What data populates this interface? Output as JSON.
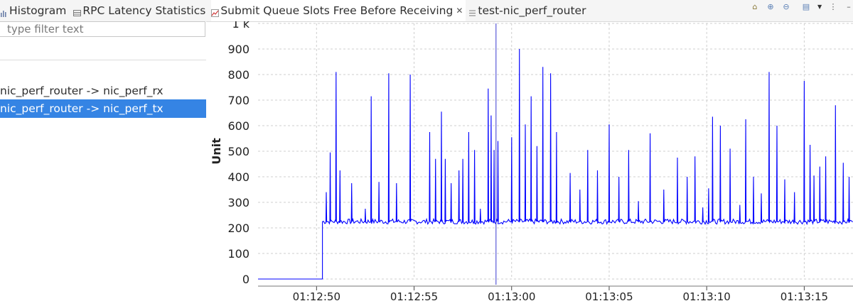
{
  "tabs": [
    {
      "label": "Histogram",
      "icon": "histogram-icon",
      "active": false,
      "closable": false
    },
    {
      "label": "RPC Latency Statistics",
      "icon": "table-icon",
      "active": false,
      "closable": false
    },
    {
      "label": "Submit Queue Slots Free Before Receiving",
      "icon": "chart-icon",
      "active": true,
      "closable": true
    },
    {
      "label": "test-nic_perf_router",
      "icon": "list-icon",
      "active": false,
      "closable": false
    }
  ],
  "toolbar": [
    "home-icon",
    "zoom-in-icon",
    "zoom-out-icon",
    "layout-icon",
    "dropdown-icon",
    "view-menu-icon",
    "minimize-icon"
  ],
  "filter": {
    "placeholder": "type filter text"
  },
  "tree": {
    "items": [
      {
        "label": "nic_perf_router -> nic_perf_rx",
        "selected": false
      },
      {
        "label": "nic_perf_router -> nic_perf_tx",
        "selected": true
      }
    ]
  },
  "colors": {
    "series": "#0000ff",
    "selection": "#3584e4",
    "grid": "#cfcfcf"
  },
  "chart_data": {
    "type": "line",
    "ylabel": "Unit",
    "ylim": [
      0,
      1000
    ],
    "yticks": [
      "0",
      "100",
      "200",
      "300",
      "400",
      "500",
      "600",
      "700",
      "800",
      "900",
      "1 k"
    ],
    "xlim": [
      0,
      30.5
    ],
    "xticks": [
      {
        "at": 3.0,
        "label": "01:12:50"
      },
      {
        "at": 8.0,
        "label": "01:12:55"
      },
      {
        "at": 13.0,
        "label": "01:13:00"
      },
      {
        "at": 18.0,
        "label": "01:13:05"
      },
      {
        "at": 23.0,
        "label": "01:13:10"
      },
      {
        "at": 28.0,
        "label": "01:13:15"
      }
    ],
    "grid": true,
    "cursor_at": 12.2,
    "series": [
      {
        "color": "#0000ff",
        "baseline_before": 0,
        "step_at": 3.3,
        "baseline_after": 225,
        "spikes": [
          [
            3.5,
            340
          ],
          [
            3.7,
            495
          ],
          [
            4.0,
            810
          ],
          [
            4.2,
            425
          ],
          [
            4.8,
            375
          ],
          [
            5.5,
            275
          ],
          [
            5.8,
            715
          ],
          [
            6.2,
            380
          ],
          [
            6.7,
            805
          ],
          [
            7.1,
            375
          ],
          [
            7.8,
            800
          ],
          [
            8.8,
            575
          ],
          [
            9.1,
            470
          ],
          [
            9.4,
            655
          ],
          [
            9.6,
            470
          ],
          [
            9.9,
            375
          ],
          [
            10.3,
            425
          ],
          [
            10.5,
            470
          ],
          [
            10.8,
            575
          ],
          [
            11.1,
            505
          ],
          [
            11.4,
            275
          ],
          [
            11.8,
            745
          ],
          [
            11.95,
            640
          ],
          [
            12.1,
            505
          ],
          [
            12.3,
            540
          ],
          [
            13.0,
            555
          ],
          [
            13.4,
            900
          ],
          [
            13.7,
            605
          ],
          [
            14.0,
            715
          ],
          [
            14.3,
            520
          ],
          [
            14.6,
            830
          ],
          [
            15.0,
            805
          ],
          [
            15.3,
            575
          ],
          [
            16.0,
            415
          ],
          [
            16.5,
            350
          ],
          [
            16.9,
            505
          ],
          [
            17.4,
            425
          ],
          [
            18.0,
            605
          ],
          [
            18.5,
            400
          ],
          [
            19.0,
            505
          ],
          [
            19.5,
            305
          ],
          [
            20.1,
            570
          ],
          [
            20.8,
            350
          ],
          [
            21.5,
            475
          ],
          [
            22.0,
            400
          ],
          [
            22.4,
            480
          ],
          [
            22.8,
            280
          ],
          [
            23.1,
            355
          ],
          [
            23.3,
            635
          ],
          [
            23.7,
            600
          ],
          [
            24.2,
            510
          ],
          [
            24.7,
            290
          ],
          [
            25.0,
            625
          ],
          [
            25.4,
            400
          ],
          [
            25.8,
            335
          ],
          [
            26.2,
            810
          ],
          [
            26.6,
            600
          ],
          [
            27.0,
            390
          ],
          [
            27.5,
            340
          ],
          [
            28.0,
            775
          ],
          [
            28.3,
            525
          ],
          [
            28.5,
            405
          ],
          [
            28.8,
            440
          ],
          [
            29.1,
            480
          ],
          [
            29.6,
            680
          ],
          [
            30.0,
            455
          ],
          [
            30.3,
            400
          ]
        ],
        "noise_amplitude": 10
      }
    ]
  }
}
